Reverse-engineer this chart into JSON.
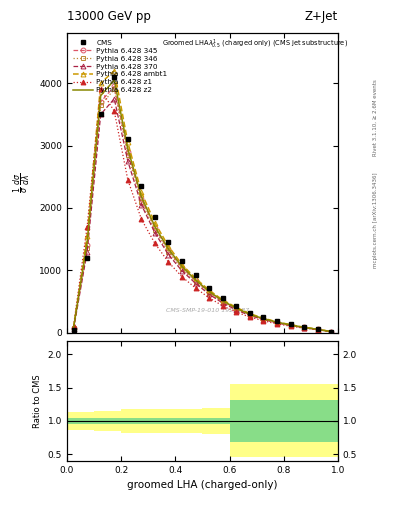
{
  "title_top": "13000 GeV pp",
  "title_right": "Z+Jet",
  "xlabel": "groomed LHA (charged-only)",
  "ylabel_ratio": "Ratio to CMS",
  "right_label_top": "Rivet 3.1.10, ≥ 2.6M events",
  "right_label_bottom": "mcplots.cern.ch [arXiv:1306.3436]",
  "watermark": "CMS-SMP-19-010 1920187",
  "cms_x": [
    0.025,
    0.075,
    0.125,
    0.175,
    0.225,
    0.275,
    0.325,
    0.375,
    0.425,
    0.475,
    0.525,
    0.575,
    0.625,
    0.675,
    0.725,
    0.775,
    0.825,
    0.875,
    0.925,
    0.975
  ],
  "cms_y": [
    50,
    1200,
    3500,
    4100,
    3100,
    2350,
    1850,
    1450,
    1150,
    920,
    720,
    560,
    430,
    320,
    250,
    185,
    140,
    95,
    58,
    18
  ],
  "p345_x": [
    0.025,
    0.075,
    0.125,
    0.175,
    0.225,
    0.275,
    0.325,
    0.375,
    0.425,
    0.475,
    0.525,
    0.575,
    0.625,
    0.675,
    0.725,
    0.775,
    0.825,
    0.875,
    0.925,
    0.975
  ],
  "p345_y": [
    80,
    1400,
    3700,
    3950,
    2900,
    2150,
    1680,
    1320,
    1040,
    830,
    650,
    500,
    385,
    290,
    220,
    165,
    122,
    83,
    53,
    16
  ],
  "p346_x": [
    0.025,
    0.075,
    0.125,
    0.175,
    0.225,
    0.275,
    0.325,
    0.375,
    0.425,
    0.475,
    0.525,
    0.575,
    0.625,
    0.675,
    0.725,
    0.775,
    0.825,
    0.875,
    0.925,
    0.975
  ],
  "p346_y": [
    75,
    1350,
    3650,
    3900,
    2850,
    2100,
    1640,
    1290,
    1020,
    810,
    635,
    490,
    375,
    282,
    215,
    160,
    118,
    80,
    51,
    16
  ],
  "p370_x": [
    0.025,
    0.075,
    0.125,
    0.175,
    0.225,
    0.275,
    0.325,
    0.375,
    0.425,
    0.475,
    0.525,
    0.575,
    0.625,
    0.675,
    0.725,
    0.775,
    0.825,
    0.875,
    0.925,
    0.975
  ],
  "p370_y": [
    60,
    1300,
    3500,
    3750,
    2750,
    2050,
    1600,
    1250,
    990,
    790,
    615,
    475,
    365,
    275,
    210,
    155,
    115,
    78,
    50,
    15
  ],
  "pambt1_x": [
    0.025,
    0.075,
    0.125,
    0.175,
    0.225,
    0.275,
    0.325,
    0.375,
    0.425,
    0.475,
    0.525,
    0.575,
    0.625,
    0.675,
    0.725,
    0.775,
    0.825,
    0.875,
    0.925,
    0.975
  ],
  "pambt1_y": [
    90,
    1550,
    4000,
    4200,
    3050,
    2250,
    1760,
    1385,
    1090,
    870,
    680,
    525,
    405,
    305,
    232,
    173,
    128,
    87,
    56,
    17
  ],
  "pz1_x": [
    0.025,
    0.075,
    0.125,
    0.175,
    0.225,
    0.275,
    0.325,
    0.375,
    0.425,
    0.475,
    0.525,
    0.575,
    0.625,
    0.675,
    0.725,
    0.775,
    0.825,
    0.875,
    0.925,
    0.975
  ],
  "pz1_y": [
    110,
    1700,
    3900,
    3550,
    2450,
    1820,
    1430,
    1130,
    895,
    715,
    558,
    430,
    330,
    250,
    190,
    141,
    104,
    71,
    46,
    14
  ],
  "pz2_x": [
    0.025,
    0.075,
    0.125,
    0.175,
    0.225,
    0.275,
    0.325,
    0.375,
    0.425,
    0.475,
    0.525,
    0.575,
    0.625,
    0.675,
    0.725,
    0.775,
    0.825,
    0.875,
    0.925,
    0.975
  ],
  "pz2_y": [
    82,
    1450,
    3800,
    4050,
    2950,
    2180,
    1700,
    1340,
    1060,
    845,
    660,
    510,
    392,
    295,
    225,
    168,
    124,
    84,
    54,
    16
  ],
  "ratio_x_edges": [
    0.0,
    0.1,
    0.2,
    0.3,
    0.4,
    0.5,
    0.6,
    0.7,
    1.0
  ],
  "ratio_green_lo": [
    0.95,
    0.95,
    0.95,
    0.95,
    0.95,
    0.95,
    0.68,
    0.68,
    0.68
  ],
  "ratio_green_hi": [
    1.05,
    1.05,
    1.05,
    1.05,
    1.05,
    1.05,
    1.32,
    1.32,
    1.32
  ],
  "ratio_yellow_lo": [
    0.87,
    0.85,
    0.82,
    0.82,
    0.82,
    0.8,
    0.45,
    0.45,
    0.45
  ],
  "ratio_yellow_hi": [
    1.13,
    1.15,
    1.18,
    1.18,
    1.18,
    1.2,
    1.55,
    1.55,
    1.55
  ],
  "ylim_main": [
    0,
    4800
  ],
  "yticks_main": [
    0,
    1000,
    2000,
    3000,
    4000
  ],
  "ylim_ratio": [
    0.4,
    2.2
  ],
  "yticks_ratio": [
    0.5,
    1.0,
    1.5,
    2.0
  ],
  "color_345": "#dd5566",
  "color_346": "#bb8833",
  "color_370": "#aa2244",
  "color_ambt1": "#cc9900",
  "color_z1": "#cc2222",
  "color_z2": "#888800"
}
